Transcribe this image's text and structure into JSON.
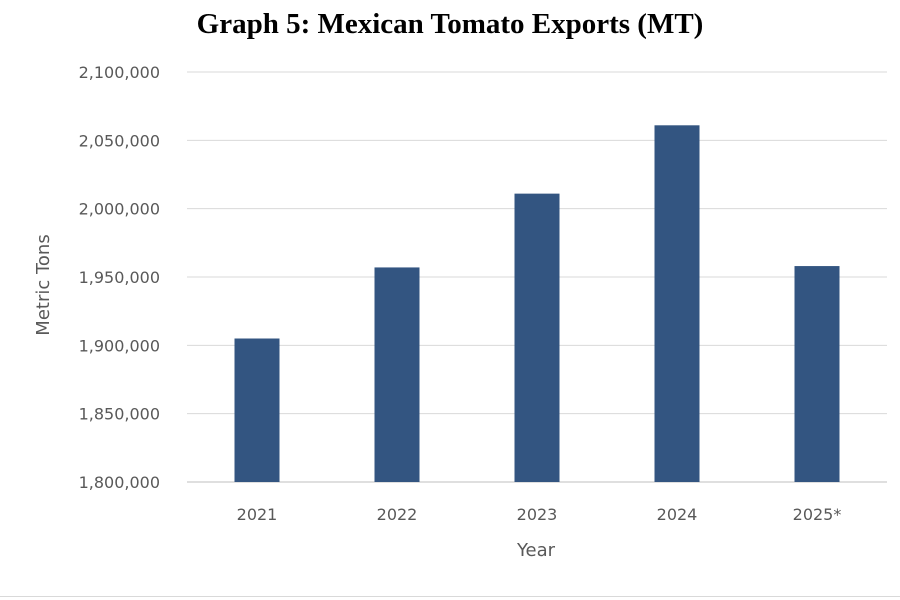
{
  "chart_data": {
    "type": "bar",
    "title": "Graph 5: Mexican Tomato Exports (MT)",
    "xlabel": "Year",
    "ylabel": "Metric Tons",
    "categories": [
      "2021",
      "2022",
      "2023",
      "2024",
      "2025*"
    ],
    "values": [
      1905000,
      1957000,
      2011000,
      2061000,
      1958000
    ],
    "ylim": [
      1800000,
      2100000
    ],
    "yticks": [
      1800000,
      1850000,
      1900000,
      1950000,
      2000000,
      2050000,
      2100000
    ],
    "ytick_labels": [
      "1,800,000",
      "1,850,000",
      "1,900,000",
      "1,950,000",
      "2,000,000",
      "2,050,000",
      "2,100,000"
    ],
    "bar_color": "#335581",
    "grid": true,
    "legend": false
  }
}
